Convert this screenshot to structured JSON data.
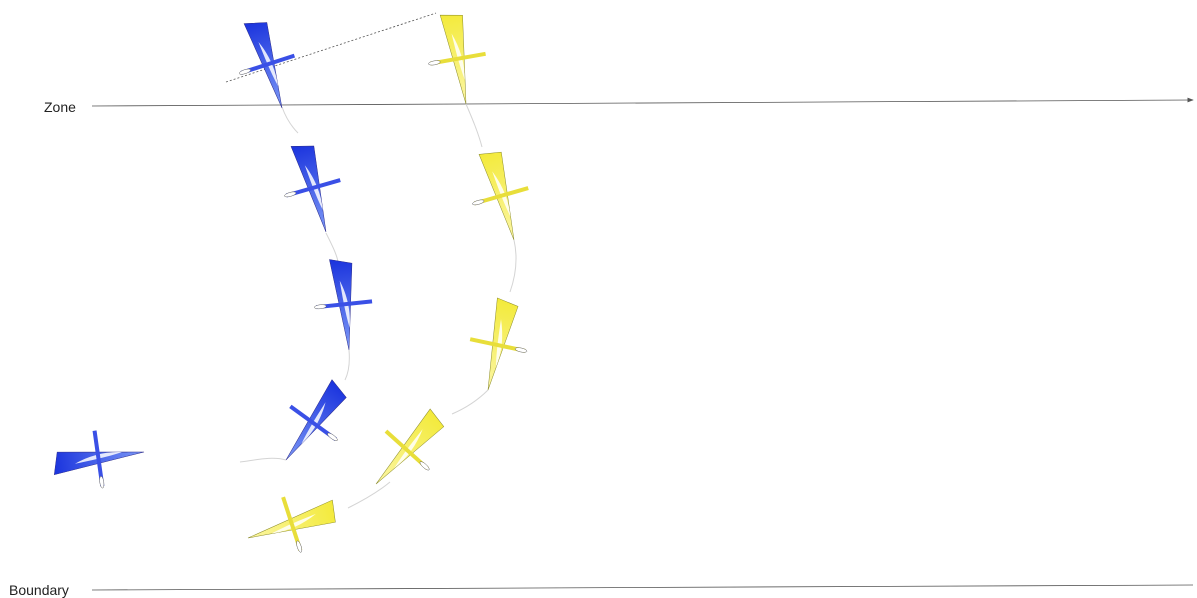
{
  "lines": {
    "zone": {
      "label": "Zone"
    },
    "boundary": {
      "label": "Boundary"
    }
  },
  "boats": {
    "blue": {
      "color": "#1f3be0",
      "color_light": "#6f8cf5",
      "positions": 5
    },
    "yellow": {
      "color": "#f5ee4a",
      "color_light": "#fbf7a8",
      "positions": 5
    }
  },
  "colors": {
    "line": "#555555",
    "track": "#d9d9d9",
    "outline": "#666666"
  }
}
